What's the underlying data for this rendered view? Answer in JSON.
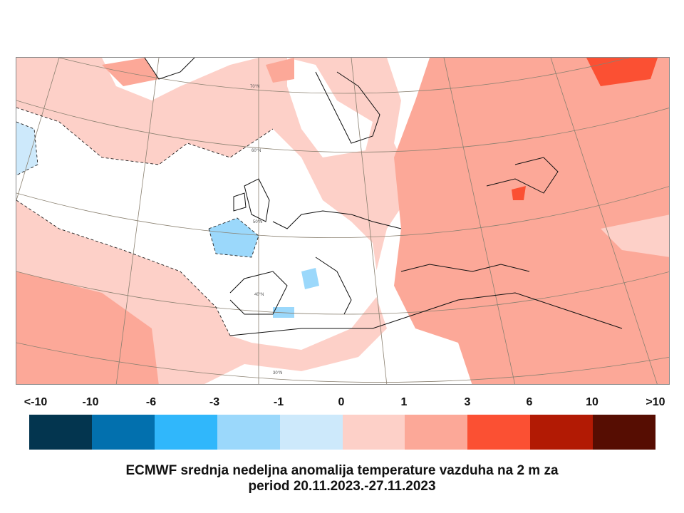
{
  "map": {
    "region": "Europe, North Atlantic, North Africa, Western Asia",
    "latitude_labels": [
      "70°N",
      "60°N",
      "50°N",
      "40°N",
      "30°N"
    ],
    "colors": {
      "lt_minus10": "#03354f",
      "minus10_minus6": "#0270ae",
      "minus6_minus3": "#30b7fb",
      "minus3_minus1": "#9bd8fb",
      "minus1_0": "#cde9fb",
      "0_1": "#fdd0c8",
      "1_3": "#fca898",
      "3_6": "#fb5033",
      "6_10": "#b21a04",
      "gt_10": "#560d02"
    }
  },
  "legend": {
    "labels": [
      "<-10",
      "-10",
      "-6",
      "-3",
      "-1",
      "0",
      "1",
      "3",
      "6",
      "10",
      ">10"
    ],
    "swatches": [
      "#03354f",
      "#0270ae",
      "#30b7fb",
      "#9bd8fb",
      "#cde9fb",
      "#fdd0c8",
      "#fca898",
      "#fb5033",
      "#b21a04",
      "#560d02"
    ]
  },
  "caption": {
    "line1": "ECMWF srednja nedeljna anomalija temperature vazduha na 2 m za",
    "line2": "period 20.11.2023.-27.11.2023"
  }
}
